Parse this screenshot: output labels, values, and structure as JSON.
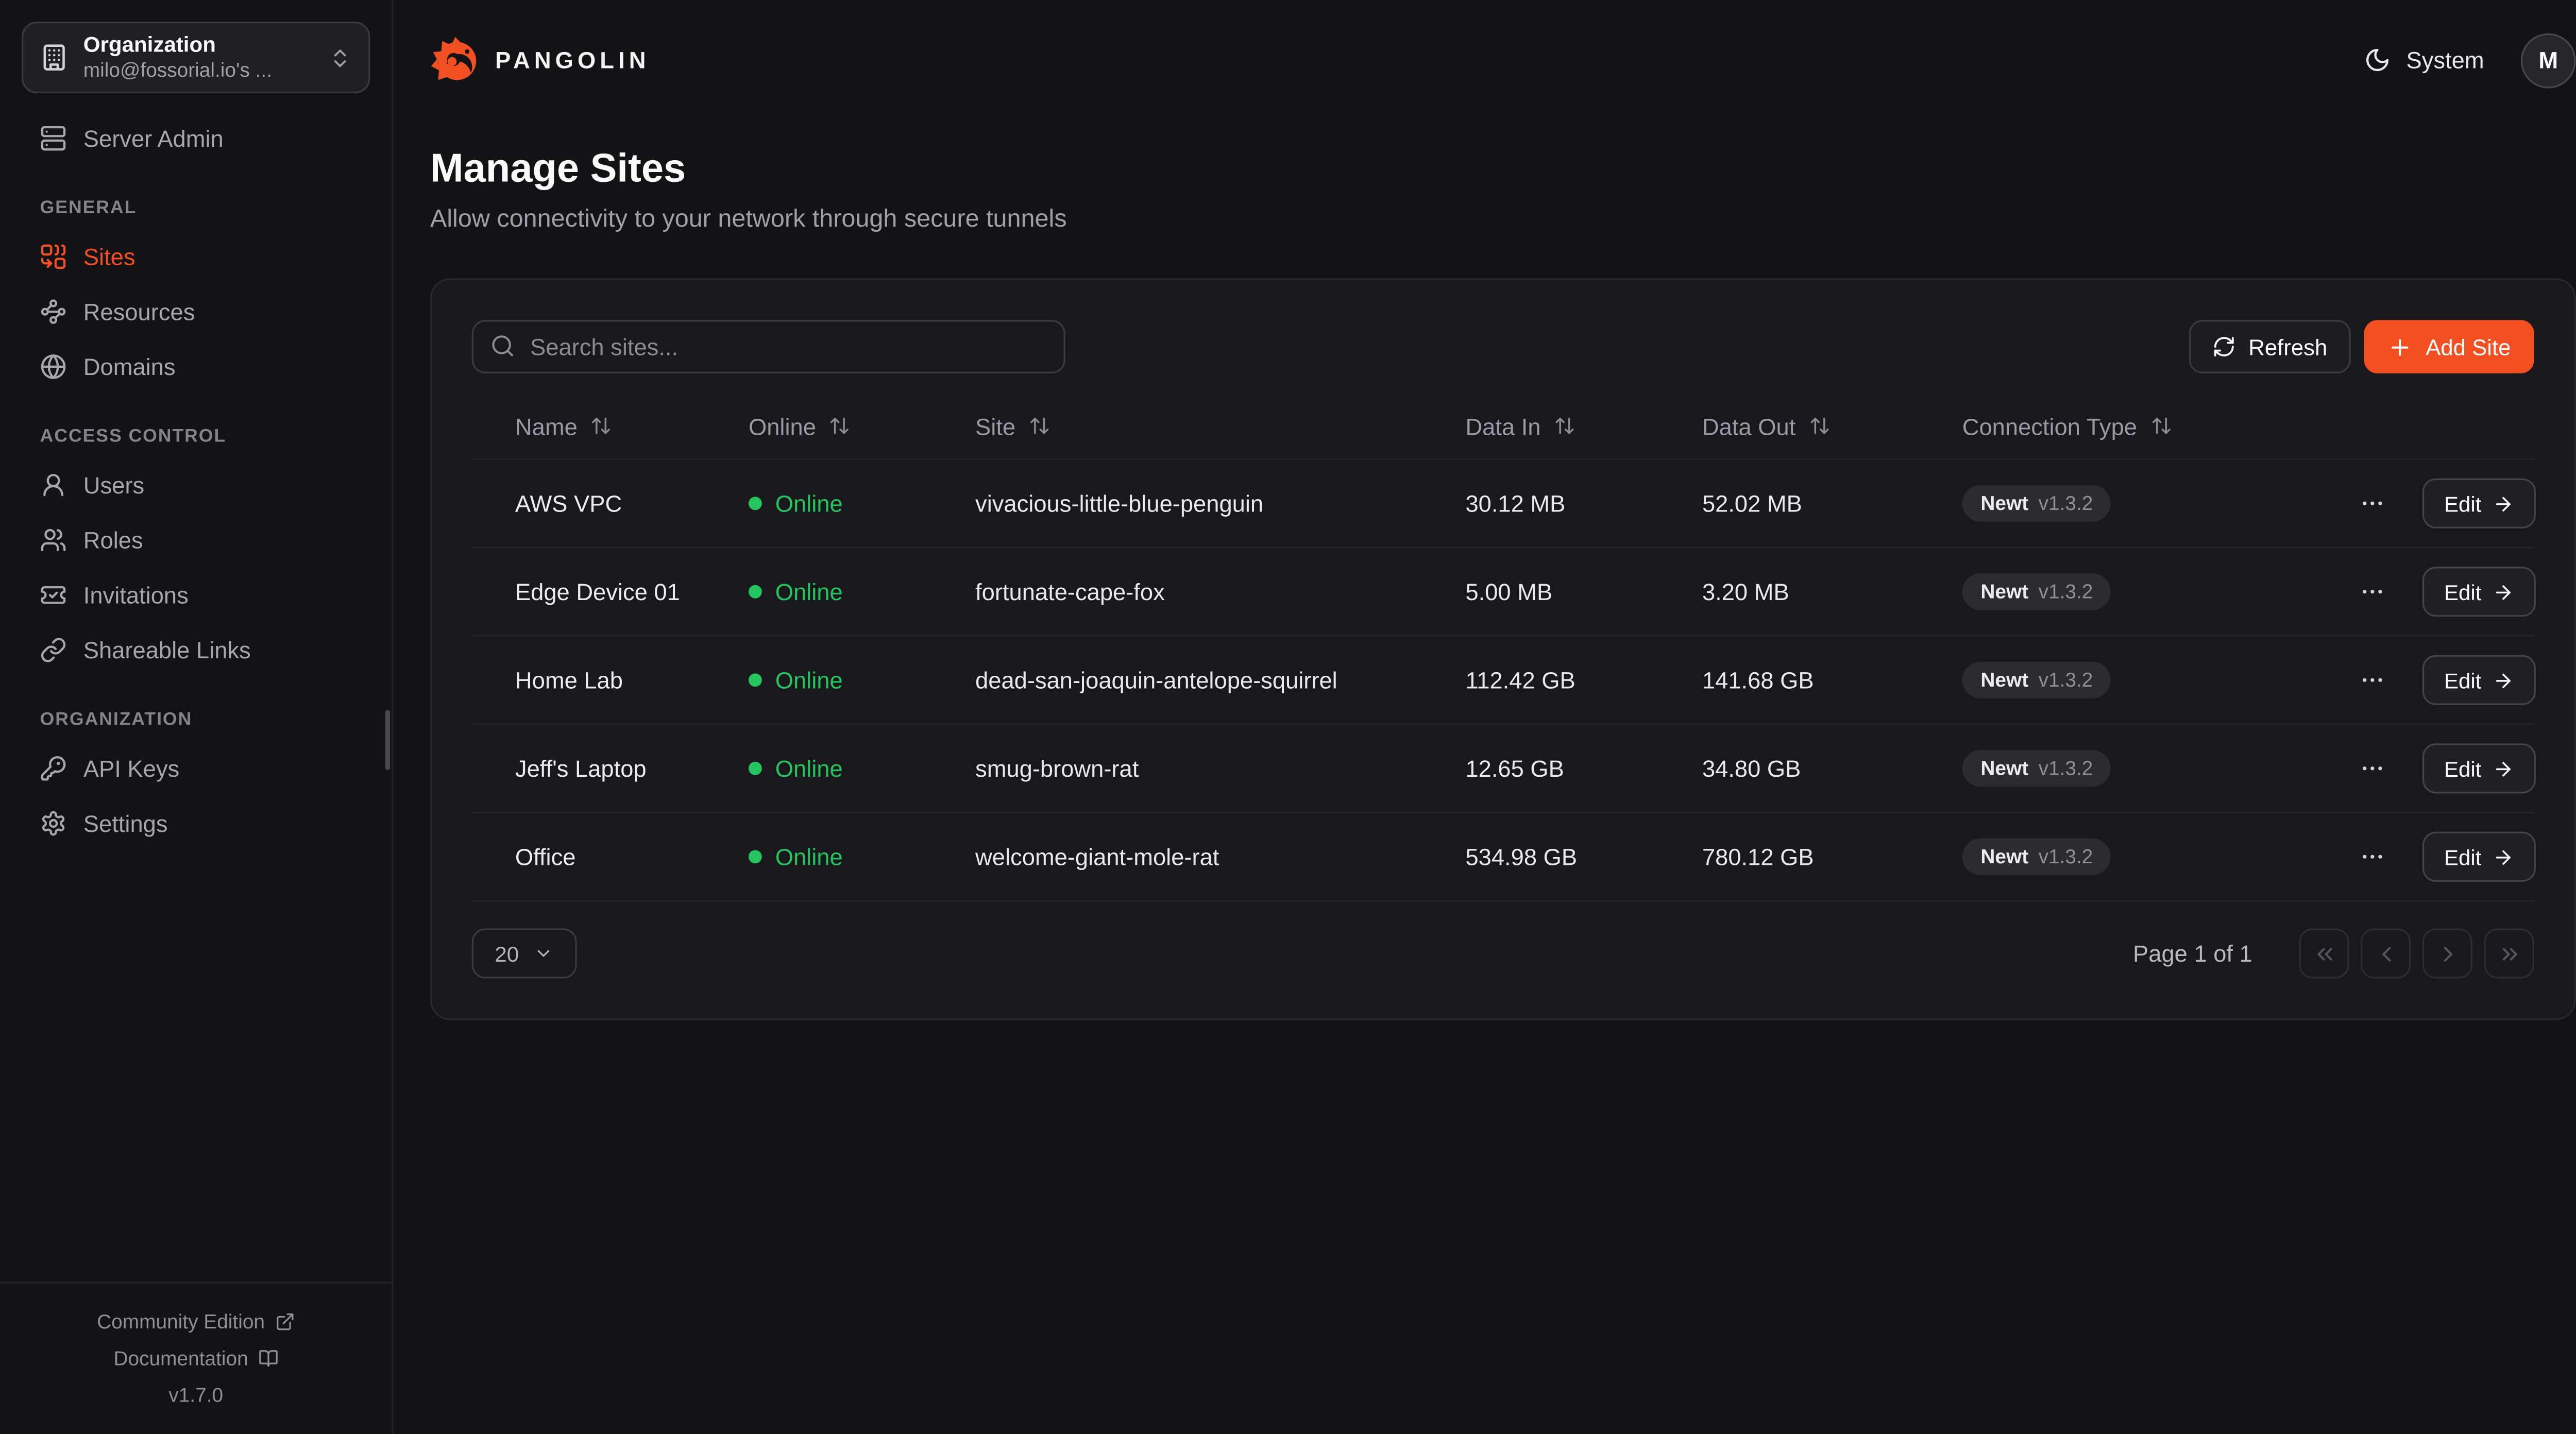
{
  "colors": {
    "accent": "#F25022",
    "online": "#22C55E"
  },
  "sidebar": {
    "org": {
      "title": "Organization",
      "value": "milo@fossorial.io's ...",
      "icon": "building-icon",
      "chevron_icon": "chevrons-up-down-icon"
    },
    "sections": [
      {
        "label": "",
        "items": [
          {
            "id": "server-admin",
            "label": "Server Admin",
            "icon": "server-icon",
            "active": false
          }
        ]
      },
      {
        "label": "GENERAL",
        "items": [
          {
            "id": "sites",
            "label": "Sites",
            "icon": "combine-icon",
            "active": true
          },
          {
            "id": "resources",
            "label": "Resources",
            "icon": "waypoints-icon",
            "active": false
          },
          {
            "id": "domains",
            "label": "Domains",
            "icon": "globe-icon",
            "active": false
          }
        ]
      },
      {
        "label": "ACCESS CONTROL",
        "items": [
          {
            "id": "users",
            "label": "Users",
            "icon": "user-icon",
            "active": false
          },
          {
            "id": "roles",
            "label": "Roles",
            "icon": "users-icon",
            "active": false
          },
          {
            "id": "invitations",
            "label": "Invitations",
            "icon": "ticket-check-icon",
            "active": false
          },
          {
            "id": "shareable-links",
            "label": "Shareable Links",
            "icon": "link-icon",
            "active": false
          }
        ]
      },
      {
        "label": "ORGANIZATION",
        "items": [
          {
            "id": "api-keys",
            "label": "API Keys",
            "icon": "key-icon",
            "active": false
          },
          {
            "id": "settings",
            "label": "Settings",
            "icon": "settings-icon",
            "active": false
          }
        ]
      }
    ],
    "footer": {
      "community": "Community Edition",
      "community_icon": "external-link-icon",
      "docs": "Documentation",
      "docs_icon": "book-open-icon",
      "version": "v1.7.0"
    }
  },
  "header": {
    "brand": "PANGOLIN",
    "logo_icon": "pangolin-logo",
    "theme_label": "System",
    "theme_icon": "moon-icon",
    "avatar_initial": "M"
  },
  "page": {
    "title": "Manage Sites",
    "subtitle": "Allow connectivity to your network through secure tunnels"
  },
  "toolbar": {
    "search_placeholder": "Search sites...",
    "search_icon": "search-icon",
    "refresh_label": "Refresh",
    "refresh_icon": "refresh-icon",
    "add_site_label": "Add Site",
    "add_icon": "plus-icon"
  },
  "table": {
    "columns": [
      {
        "label": "Name"
      },
      {
        "label": "Online"
      },
      {
        "label": "Site"
      },
      {
        "label": "Data In"
      },
      {
        "label": "Data Out"
      },
      {
        "label": "Connection Type"
      }
    ],
    "sort_icon": "arrow-up-down-icon",
    "edit_label": "Edit",
    "rows": [
      {
        "name": "AWS VPC",
        "status": "Online",
        "site": "vivacious-little-blue-penguin",
        "data_in": "30.12 MB",
        "data_out": "52.02 MB",
        "conn_name": "Newt",
        "conn_version": "v1.3.2"
      },
      {
        "name": "Edge Device 01",
        "status": "Online",
        "site": "fortunate-cape-fox",
        "data_in": "5.00 MB",
        "data_out": "3.20 MB",
        "conn_name": "Newt",
        "conn_version": "v1.3.2"
      },
      {
        "name": "Home Lab",
        "status": "Online",
        "site": "dead-san-joaquin-antelope-squirrel",
        "data_in": "112.42 GB",
        "data_out": "141.68 GB",
        "conn_name": "Newt",
        "conn_version": "v1.3.2"
      },
      {
        "name": "Jeff's Laptop",
        "status": "Online",
        "site": "smug-brown-rat",
        "data_in": "12.65 GB",
        "data_out": "34.80 GB",
        "conn_name": "Newt",
        "conn_version": "v1.3.2"
      },
      {
        "name": "Office",
        "status": "Online",
        "site": "welcome-giant-mole-rat",
        "data_in": "534.98 GB",
        "data_out": "780.12 GB",
        "conn_name": "Newt",
        "conn_version": "v1.3.2"
      }
    ]
  },
  "pagination": {
    "page_size": "20",
    "page_info": "Page 1 of 1"
  }
}
